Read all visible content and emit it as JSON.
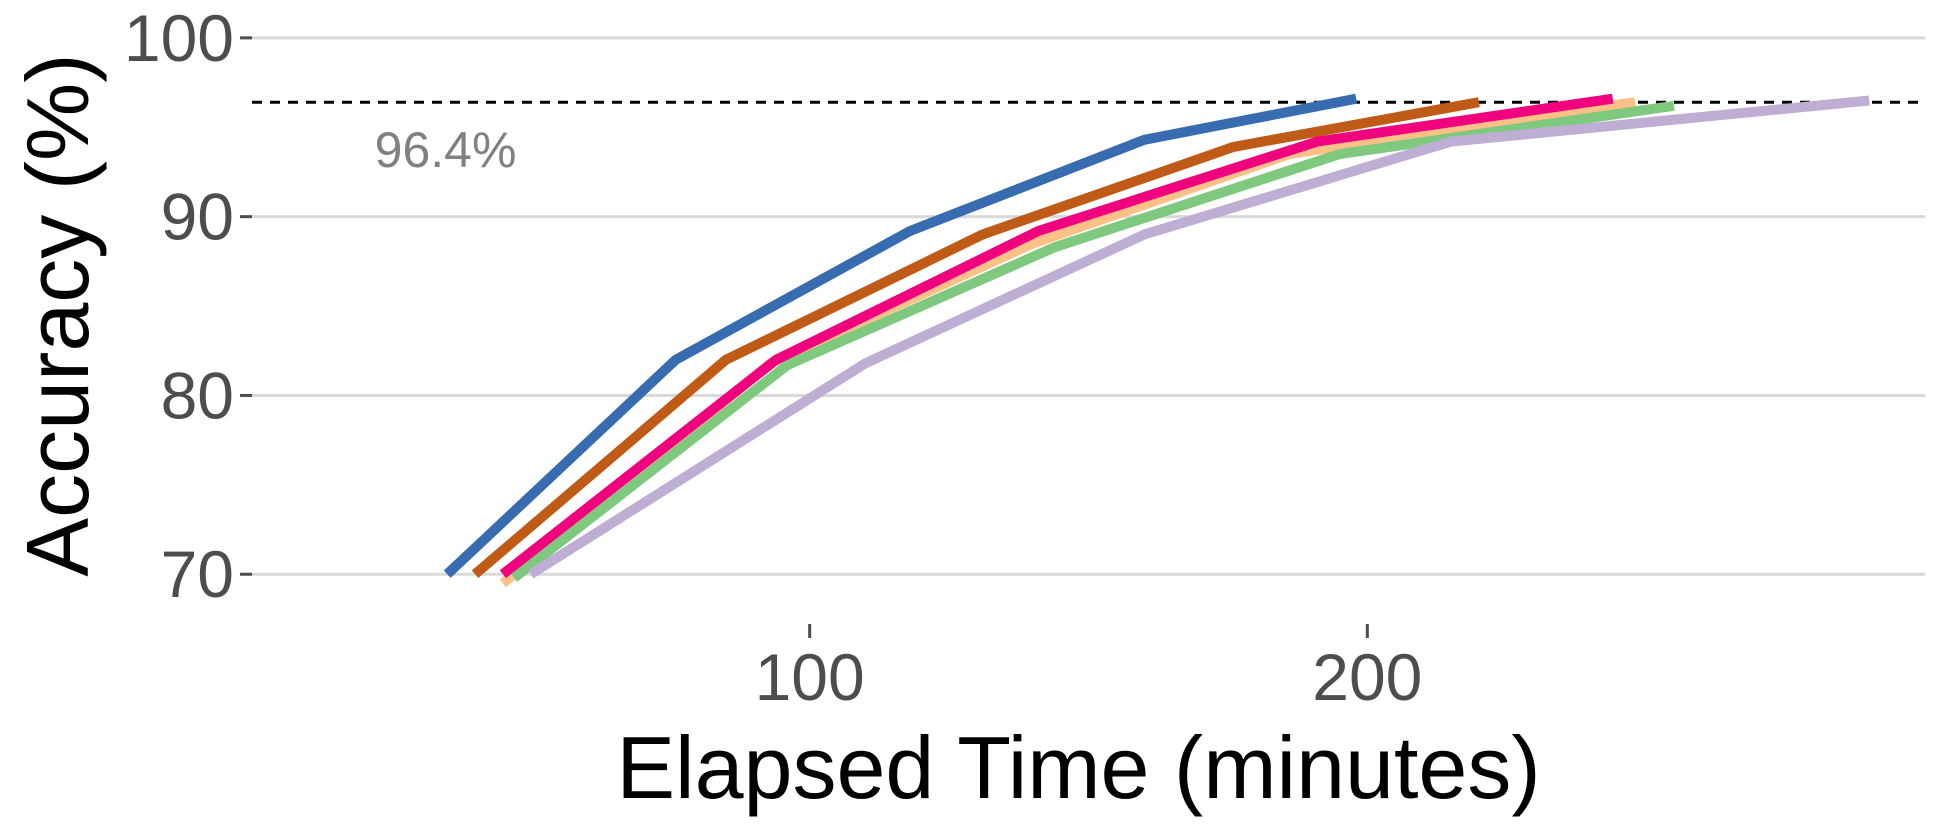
{
  "chart_data": {
    "type": "line",
    "title": "",
    "xlabel": "Elapsed Time (minutes)",
    "ylabel": "Accuracy (%)",
    "xlim": [
      0,
      300
    ],
    "ylim": [
      68,
      101
    ],
    "grid": "horizontal",
    "x_ticks": [
      {
        "value": 100,
        "label": "100"
      },
      {
        "value": 200,
        "label": "200"
      }
    ],
    "y_ticks": [
      {
        "value": 70,
        "label": "70"
      },
      {
        "value": 80,
        "label": "80"
      },
      {
        "value": 90,
        "label": "90"
      },
      {
        "value": 100,
        "label": "100"
      }
    ],
    "reference_line": {
      "y": 96.4,
      "label": "96.4%"
    },
    "series": [
      {
        "color": "#386cb0",
        "x": [
          35,
          76,
          118,
          160,
          198
        ],
        "y": [
          70,
          82,
          89.2,
          94.3,
          96.6
        ]
      },
      {
        "color": "#bf5b17",
        "x": [
          40,
          85,
          131,
          176,
          220
        ],
        "y": [
          70,
          82,
          89,
          93.9,
          96.4
        ]
      },
      {
        "color": "#fdc086",
        "x": [
          45,
          93,
          140,
          186,
          248
        ],
        "y": [
          69.5,
          81.8,
          88.5,
          93.5,
          96.4
        ]
      },
      {
        "color": "#7fc97f",
        "x": [
          47,
          96,
          144,
          195,
          255
        ],
        "y": [
          69.8,
          81.7,
          88.3,
          93.5,
          96.2
        ]
      },
      {
        "color": "#f0027f",
        "x": [
          45,
          94,
          141,
          191,
          244
        ],
        "y": [
          70,
          82,
          89.2,
          94.2,
          96.6
        ]
      },
      {
        "color": "#beaed4",
        "x": [
          50,
          110,
          160,
          215,
          290
        ],
        "y": [
          70,
          81.8,
          89,
          94.2,
          96.5
        ]
      }
    ]
  }
}
